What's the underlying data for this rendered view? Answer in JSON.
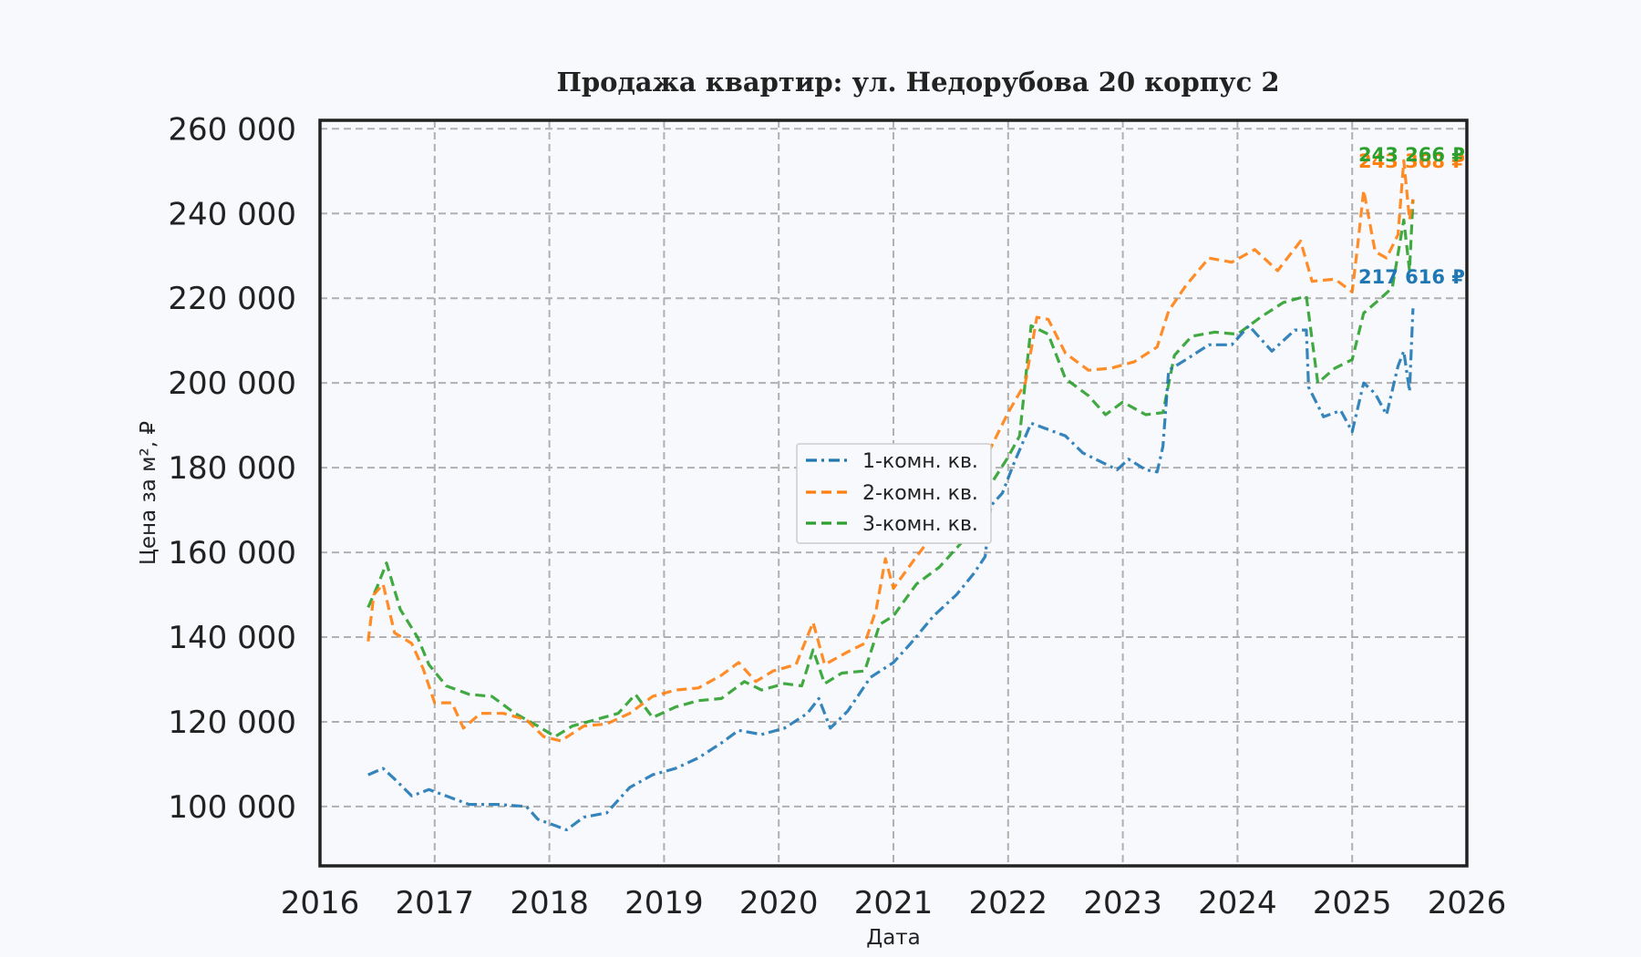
{
  "chart_data": {
    "type": "line",
    "title": "Продажа квартир: ул. Недорубова 20 корпус 2",
    "xlabel": "Дата",
    "ylabel": "Цена за м², ₽",
    "xlim": [
      2016.0,
      2026.0
    ],
    "ylim": [
      86000,
      262000
    ],
    "x_ticks": [
      "2016",
      "2017",
      "2018",
      "2019",
      "2020",
      "2021",
      "2022",
      "2023",
      "2024",
      "2025",
      "2026"
    ],
    "y_ticks": [
      "100 000",
      "120 000",
      "140 000",
      "160 000",
      "180 000",
      "200 000",
      "220 000",
      "240 000",
      "260 000"
    ],
    "grid": true,
    "legend_position": "center",
    "series": [
      {
        "name": "1-комн. кв.",
        "color": "#1f77b4",
        "line_style": "dashdot",
        "end_label": "217 616 ₽",
        "points": [
          [
            2016.42,
            107500
          ],
          [
            2016.55,
            109000
          ],
          [
            2016.65,
            106500
          ],
          [
            2016.8,
            102500
          ],
          [
            2016.95,
            104000
          ],
          [
            2017.1,
            102500
          ],
          [
            2017.3,
            100500
          ],
          [
            2017.55,
            100500
          ],
          [
            2017.8,
            100000
          ],
          [
            2017.9,
            97000
          ],
          [
            2018.05,
            95500
          ],
          [
            2018.15,
            94500
          ],
          [
            2018.3,
            97500
          ],
          [
            2018.5,
            98500
          ],
          [
            2018.7,
            104500
          ],
          [
            2018.9,
            107500
          ],
          [
            2019.1,
            109000
          ],
          [
            2019.3,
            111500
          ],
          [
            2019.5,
            115000
          ],
          [
            2019.65,
            118000
          ],
          [
            2019.85,
            117000
          ],
          [
            2020.05,
            118500
          ],
          [
            2020.25,
            122000
          ],
          [
            2020.35,
            125500
          ],
          [
            2020.45,
            118500
          ],
          [
            2020.6,
            122500
          ],
          [
            2020.8,
            130500
          ],
          [
            2021.0,
            134000
          ],
          [
            2021.15,
            138500
          ],
          [
            2021.35,
            145000
          ],
          [
            2021.55,
            150000
          ],
          [
            2021.7,
            155000
          ],
          [
            2021.8,
            159000
          ],
          [
            2021.85,
            171000
          ],
          [
            2021.95,
            174000
          ],
          [
            2022.05,
            181000
          ],
          [
            2022.2,
            190500
          ],
          [
            2022.35,
            189000
          ],
          [
            2022.5,
            187500
          ],
          [
            2022.65,
            183500
          ],
          [
            2022.8,
            181500
          ],
          [
            2022.95,
            179500
          ],
          [
            2023.05,
            182000
          ],
          [
            2023.2,
            179500
          ],
          [
            2023.3,
            179000
          ],
          [
            2023.35,
            185000
          ],
          [
            2023.4,
            203000
          ],
          [
            2023.55,
            205500
          ],
          [
            2023.75,
            209000
          ],
          [
            2023.95,
            209000
          ],
          [
            2024.1,
            213500
          ],
          [
            2024.3,
            207500
          ],
          [
            2024.5,
            212500
          ],
          [
            2024.6,
            212500
          ],
          [
            2024.62,
            199000
          ],
          [
            2024.75,
            192000
          ],
          [
            2024.9,
            193500
          ],
          [
            2025.0,
            188500
          ],
          [
            2025.1,
            200000
          ],
          [
            2025.2,
            197500
          ],
          [
            2025.3,
            192500
          ],
          [
            2025.4,
            204000
          ],
          [
            2025.45,
            207500
          ],
          [
            2025.5,
            198000
          ],
          [
            2025.53,
            217616
          ]
        ]
      },
      {
        "name": "2-комн. кв.",
        "color": "#ff7f0e",
        "line_style": "dashed",
        "end_label": "243 368 ₽",
        "points": [
          [
            2016.42,
            139000
          ],
          [
            2016.47,
            150000
          ],
          [
            2016.55,
            152500
          ],
          [
            2016.65,
            141000
          ],
          [
            2016.8,
            138500
          ],
          [
            2016.9,
            132500
          ],
          [
            2017.0,
            124500
          ],
          [
            2017.15,
            124500
          ],
          [
            2017.25,
            118500
          ],
          [
            2017.4,
            122000
          ],
          [
            2017.6,
            122000
          ],
          [
            2017.8,
            120500
          ],
          [
            2017.95,
            116500
          ],
          [
            2018.1,
            115500
          ],
          [
            2018.3,
            119000
          ],
          [
            2018.5,
            119500
          ],
          [
            2018.7,
            122000
          ],
          [
            2018.9,
            126000
          ],
          [
            2019.1,
            127500
          ],
          [
            2019.3,
            128000
          ],
          [
            2019.5,
            131000
          ],
          [
            2019.65,
            134000
          ],
          [
            2019.8,
            129500
          ],
          [
            2019.95,
            132000
          ],
          [
            2020.15,
            133500
          ],
          [
            2020.3,
            143500
          ],
          [
            2020.4,
            133500
          ],
          [
            2020.6,
            136500
          ],
          [
            2020.75,
            138500
          ],
          [
            2020.85,
            146500
          ],
          [
            2020.93,
            158500
          ],
          [
            2021.0,
            151500
          ],
          [
            2021.2,
            159000
          ],
          [
            2021.4,
            166000
          ],
          [
            2021.6,
            173000
          ],
          [
            2021.8,
            182000
          ],
          [
            2022.0,
            193000
          ],
          [
            2022.15,
            200000
          ],
          [
            2022.25,
            215500
          ],
          [
            2022.35,
            215000
          ],
          [
            2022.5,
            207000
          ],
          [
            2022.7,
            203000
          ],
          [
            2022.9,
            203500
          ],
          [
            2023.1,
            205000
          ],
          [
            2023.3,
            208500
          ],
          [
            2023.4,
            217000
          ],
          [
            2023.55,
            223000
          ],
          [
            2023.75,
            229500
          ],
          [
            2023.95,
            228500
          ],
          [
            2024.15,
            231500
          ],
          [
            2024.35,
            226500
          ],
          [
            2024.55,
            233500
          ],
          [
            2024.65,
            224000
          ],
          [
            2024.85,
            224500
          ],
          [
            2025.0,
            221500
          ],
          [
            2025.05,
            233000
          ],
          [
            2025.1,
            245500
          ],
          [
            2025.2,
            231000
          ],
          [
            2025.3,
            229500
          ],
          [
            2025.4,
            235000
          ],
          [
            2025.45,
            252500
          ],
          [
            2025.5,
            238500
          ],
          [
            2025.53,
            243368
          ]
        ]
      },
      {
        "name": "3-комн. кв.",
        "color": "#2ca02c",
        "line_style": "dashed",
        "end_label": "243 266 ₽",
        "points": [
          [
            2016.42,
            147000
          ],
          [
            2016.5,
            152000
          ],
          [
            2016.58,
            157500
          ],
          [
            2016.7,
            146500
          ],
          [
            2016.85,
            140000
          ],
          [
            2016.95,
            133500
          ],
          [
            2017.1,
            128500
          ],
          [
            2017.3,
            126500
          ],
          [
            2017.5,
            126000
          ],
          [
            2017.7,
            122000
          ],
          [
            2017.9,
            119000
          ],
          [
            2018.05,
            116500
          ],
          [
            2018.2,
            119000
          ],
          [
            2018.4,
            120500
          ],
          [
            2018.6,
            122000
          ],
          [
            2018.75,
            126500
          ],
          [
            2018.9,
            121000
          ],
          [
            2019.1,
            123500
          ],
          [
            2019.3,
            125000
          ],
          [
            2019.5,
            125500
          ],
          [
            2019.7,
            129500
          ],
          [
            2019.85,
            127500
          ],
          [
            2020.05,
            129000
          ],
          [
            2020.2,
            128500
          ],
          [
            2020.3,
            137000
          ],
          [
            2020.4,
            129000
          ],
          [
            2020.55,
            131500
          ],
          [
            2020.75,
            132000
          ],
          [
            2020.88,
            143000
          ],
          [
            2021.0,
            145000
          ],
          [
            2021.2,
            152500
          ],
          [
            2021.4,
            156500
          ],
          [
            2021.6,
            162500
          ],
          [
            2021.8,
            174000
          ],
          [
            2022.0,
            182500
          ],
          [
            2022.1,
            187500
          ],
          [
            2022.2,
            213500
          ],
          [
            2022.35,
            211500
          ],
          [
            2022.5,
            201000
          ],
          [
            2022.7,
            197000
          ],
          [
            2022.85,
            192500
          ],
          [
            2023.0,
            195500
          ],
          [
            2023.2,
            192500
          ],
          [
            2023.35,
            193000
          ],
          [
            2023.45,
            206500
          ],
          [
            2023.6,
            211000
          ],
          [
            2023.8,
            212000
          ],
          [
            2024.0,
            211500
          ],
          [
            2024.2,
            215500
          ],
          [
            2024.4,
            219000
          ],
          [
            2024.6,
            220500
          ],
          [
            2024.7,
            200000
          ],
          [
            2024.85,
            203500
          ],
          [
            2025.0,
            205500
          ],
          [
            2025.1,
            216500
          ],
          [
            2025.25,
            220000
          ],
          [
            2025.35,
            222500
          ],
          [
            2025.45,
            238500
          ],
          [
            2025.5,
            226500
          ],
          [
            2025.53,
            243266
          ]
        ]
      }
    ]
  }
}
